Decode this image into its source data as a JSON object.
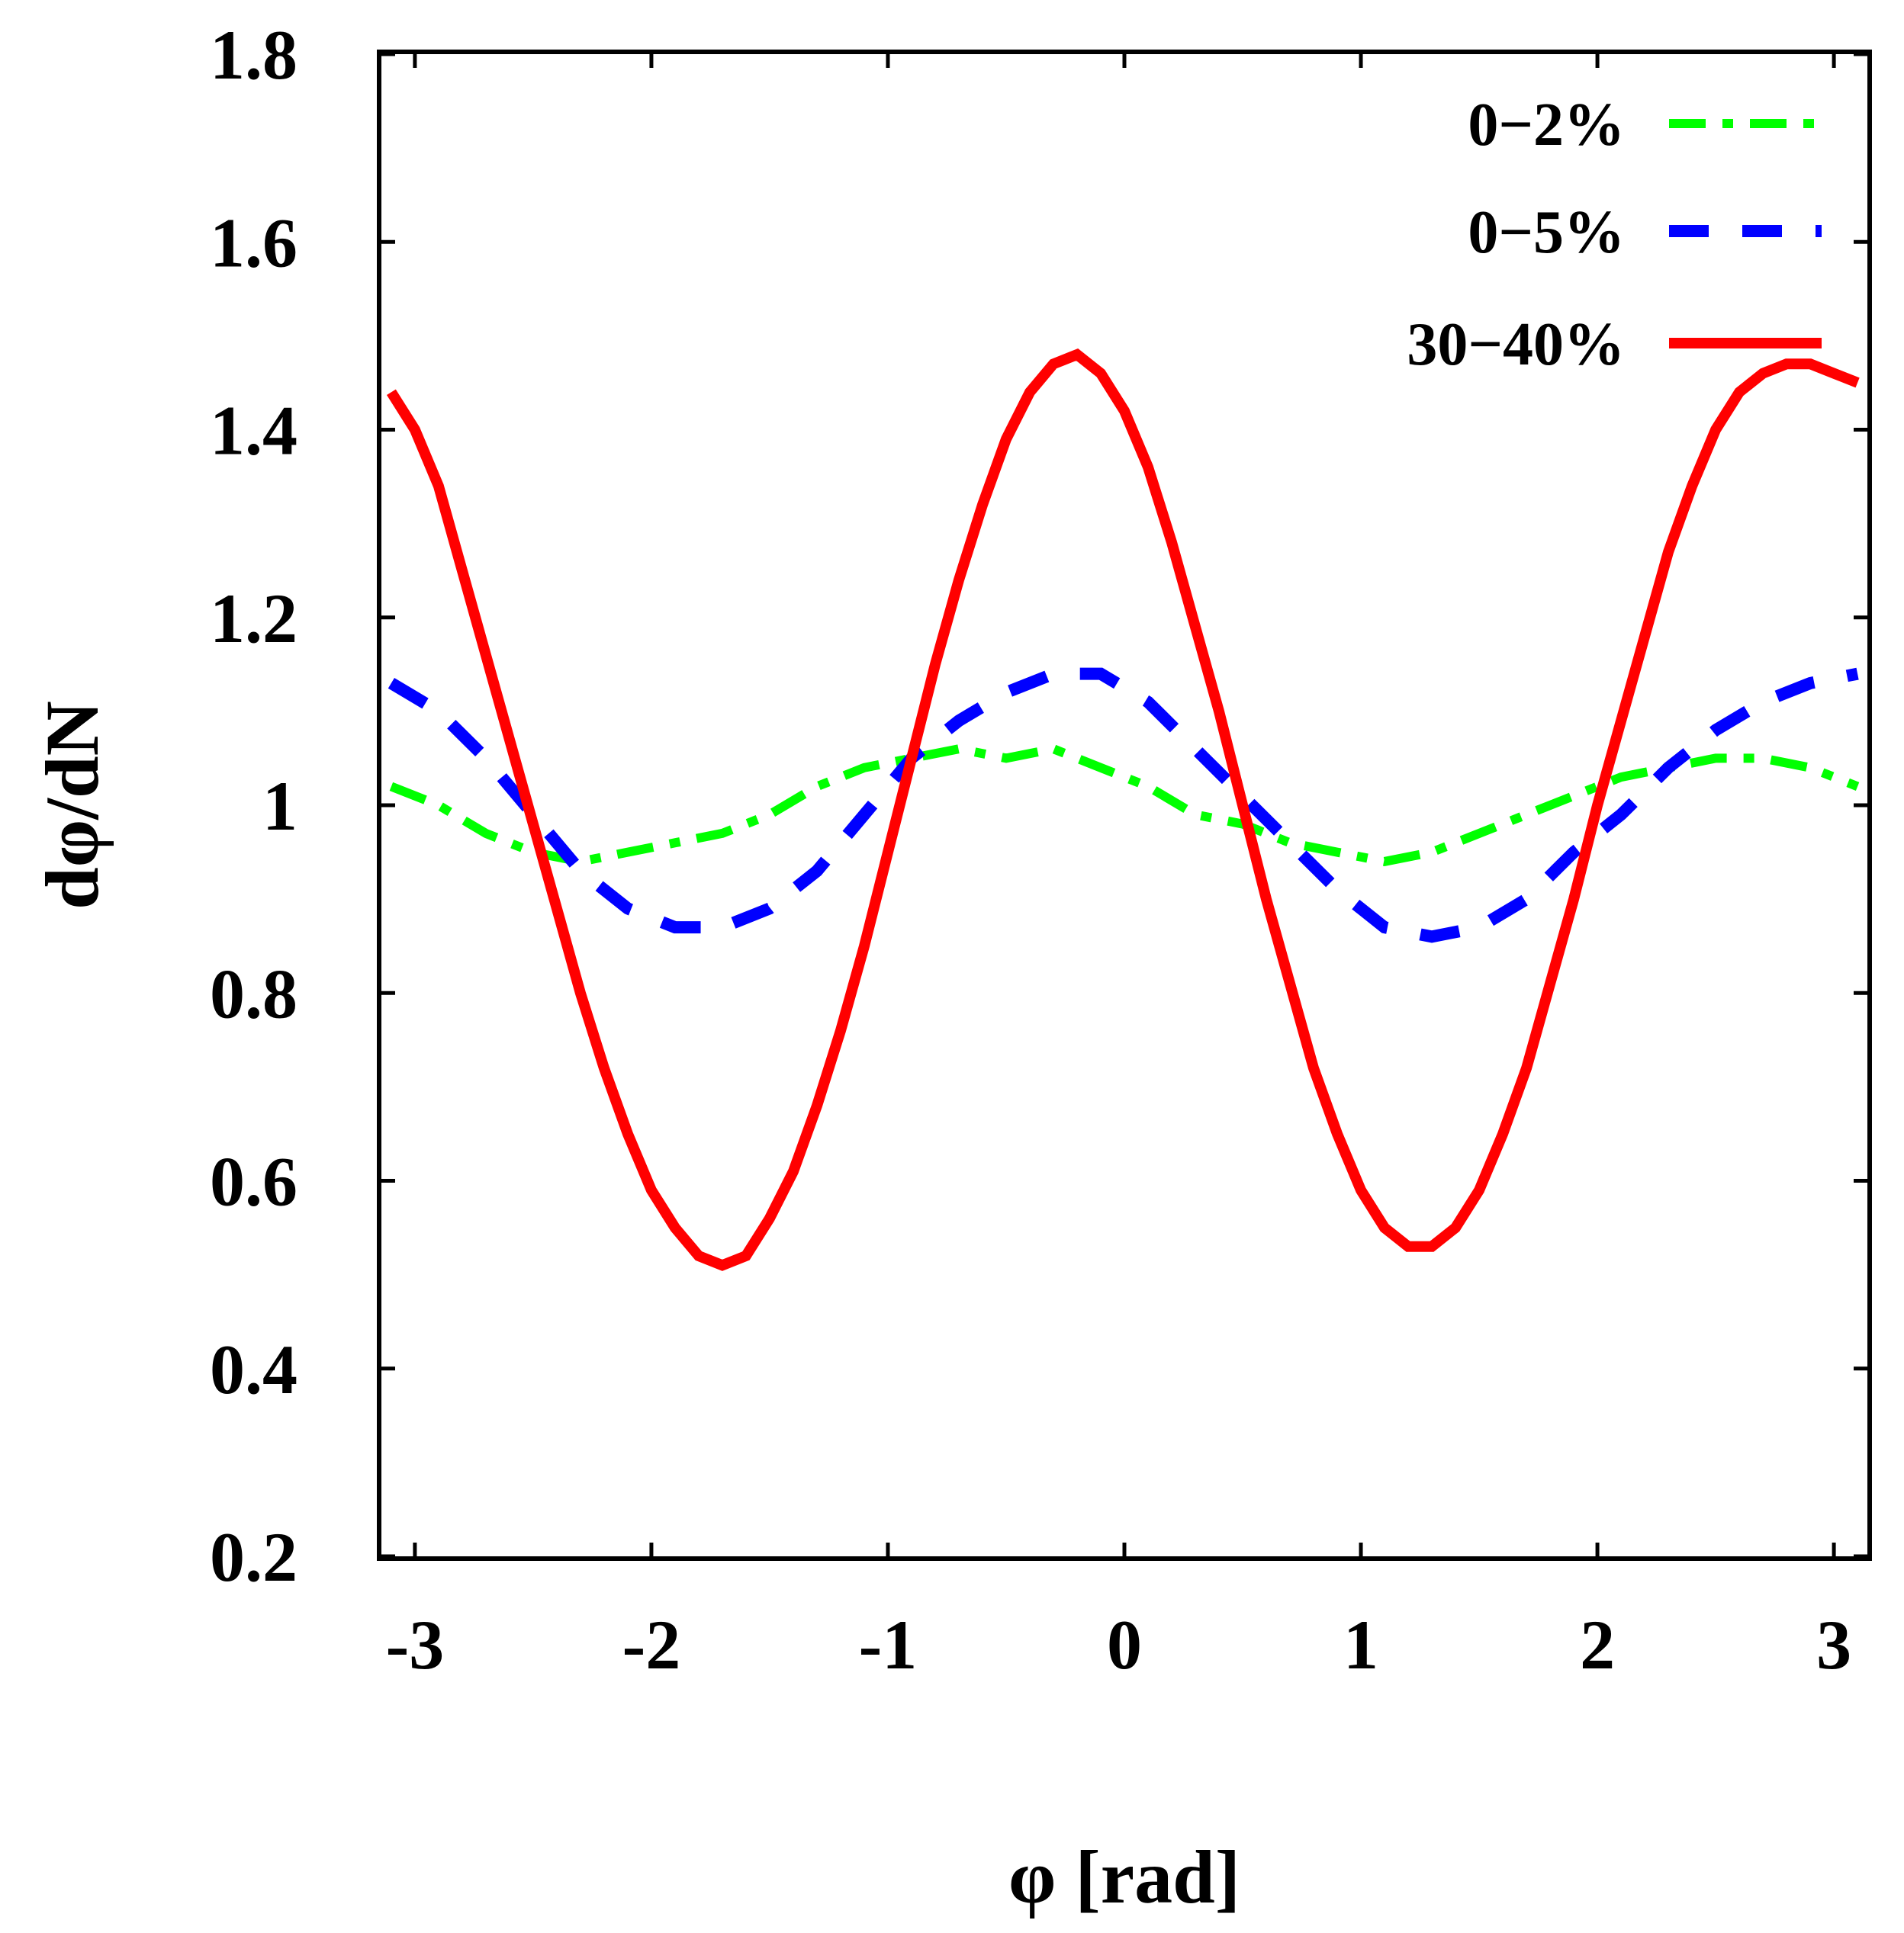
{
  "chart_data": {
    "type": "line",
    "title": "",
    "xlabel": "φ [rad]",
    "ylabel": "dφ/dN",
    "xlim": [
      -3.14159,
      3.14159
    ],
    "ylim": [
      0.2,
      1.8
    ],
    "xticks": [
      -3,
      -2,
      -1,
      0,
      1,
      2,
      3
    ],
    "xtick_labels": [
      "-3",
      "-2",
      "-1",
      "0",
      "1",
      "2",
      "3"
    ],
    "yticks": [
      0.2,
      0.4,
      0.6,
      0.8,
      1.0,
      1.2,
      1.4,
      1.6,
      1.8
    ],
    "ytick_labels": [
      "0.2",
      "0.4",
      "0.6",
      "0.8",
      "1",
      "1.2",
      "1.4",
      "1.6",
      "1.8"
    ],
    "grid": false,
    "legend_position": "top-right",
    "series": [
      {
        "name": "0-2%",
        "label": "0−2%",
        "color": "#00ff00",
        "style": "dash-dot",
        "x": [
          -3.1,
          -2.9,
          -2.7,
          -2.5,
          -2.3,
          -2.1,
          -1.9,
          -1.7,
          -1.5,
          -1.3,
          -1.1,
          -0.9,
          -0.7,
          -0.5,
          -0.3,
          -0.1,
          0.1,
          0.3,
          0.5,
          0.7,
          0.9,
          1.1,
          1.3,
          1.5,
          1.7,
          1.9,
          2.1,
          2.3,
          2.5,
          2.7,
          2.9,
          3.1
        ],
        "y": [
          1.02,
          1.0,
          0.97,
          0.95,
          0.94,
          0.95,
          0.96,
          0.97,
          0.99,
          1.02,
          1.04,
          1.05,
          1.06,
          1.05,
          1.06,
          1.04,
          1.02,
          0.99,
          0.98,
          0.96,
          0.95,
          0.94,
          0.95,
          0.97,
          0.99,
          1.01,
          1.03,
          1.04,
          1.05,
          1.05,
          1.04,
          1.02
        ]
      },
      {
        "name": "0-5%",
        "label": "0−5%",
        "color": "#0000ff",
        "style": "dash",
        "x": [
          -3.1,
          -2.9,
          -2.7,
          -2.5,
          -2.3,
          -2.1,
          -1.9,
          -1.7,
          -1.5,
          -1.3,
          -1.1,
          -0.9,
          -0.7,
          -0.5,
          -0.3,
          -0.1,
          0.1,
          0.3,
          0.5,
          0.7,
          0.9,
          1.1,
          1.3,
          1.5,
          1.7,
          1.9,
          2.1,
          2.3,
          2.5,
          2.7,
          2.9,
          3.1
        ],
        "y": [
          1.13,
          1.1,
          1.05,
          0.99,
          0.93,
          0.89,
          0.87,
          0.87,
          0.89,
          0.93,
          0.99,
          1.05,
          1.09,
          1.12,
          1.14,
          1.14,
          1.11,
          1.06,
          1.01,
          0.96,
          0.91,
          0.87,
          0.86,
          0.87,
          0.9,
          0.95,
          0.99,
          1.04,
          1.08,
          1.11,
          1.13,
          1.14
        ]
      },
      {
        "name": "30-40%",
        "label": "30−40%",
        "color": "#ff0000",
        "style": "solid",
        "x": [
          -3.1,
          -3.0,
          -2.9,
          -2.8,
          -2.7,
          -2.6,
          -2.5,
          -2.4,
          -2.3,
          -2.2,
          -2.1,
          -2.0,
          -1.9,
          -1.8,
          -1.7,
          -1.6,
          -1.5,
          -1.4,
          -1.3,
          -1.2,
          -1.1,
          -1.0,
          -0.9,
          -0.8,
          -0.7,
          -0.6,
          -0.5,
          -0.4,
          -0.3,
          -0.2,
          -0.1,
          0.0,
          0.1,
          0.2,
          0.3,
          0.4,
          0.5,
          0.6,
          0.7,
          0.8,
          0.9,
          1.0,
          1.1,
          1.2,
          1.3,
          1.4,
          1.5,
          1.6,
          1.7,
          1.8,
          1.9,
          2.0,
          2.1,
          2.2,
          2.3,
          2.4,
          2.5,
          2.6,
          2.7,
          2.8,
          2.9,
          3.0,
          3.1
        ],
        "y": [
          1.44,
          1.4,
          1.34,
          1.25,
          1.16,
          1.07,
          0.98,
          0.89,
          0.8,
          0.72,
          0.65,
          0.59,
          0.55,
          0.52,
          0.51,
          0.52,
          0.56,
          0.61,
          0.68,
          0.76,
          0.85,
          0.95,
          1.05,
          1.15,
          1.24,
          1.32,
          1.39,
          1.44,
          1.47,
          1.48,
          1.46,
          1.42,
          1.36,
          1.28,
          1.19,
          1.1,
          1.0,
          0.9,
          0.81,
          0.72,
          0.65,
          0.59,
          0.55,
          0.53,
          0.53,
          0.55,
          0.59,
          0.65,
          0.72,
          0.81,
          0.9,
          1.0,
          1.09,
          1.18,
          1.27,
          1.34,
          1.4,
          1.44,
          1.46,
          1.47,
          1.47,
          1.46,
          1.45
        ]
      }
    ]
  }
}
